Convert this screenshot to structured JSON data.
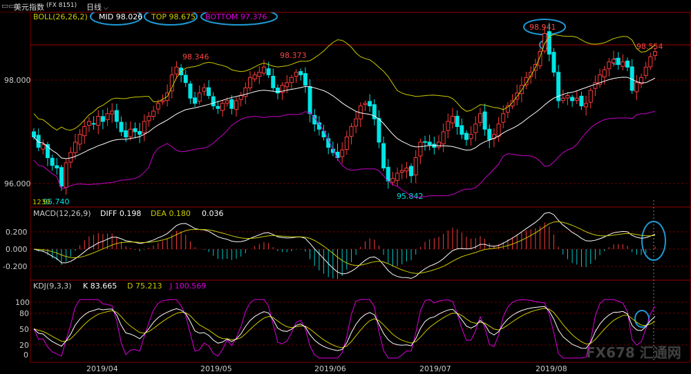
{
  "header": {
    "window_icon": "minimize-restore-icon",
    "title": "美元指数",
    "code": "(FX 8151)",
    "period": "日线",
    "period_icon": "chevron-down-icon"
  },
  "boll": {
    "label": "BOLL(26,26,2)",
    "mid_label": "MID 98.026",
    "top_label": "TOP 98.675",
    "bottom_label": "BOTTOM 97.376",
    "colors": {
      "mid": "#ffffff",
      "top": "#cccc00",
      "bottom": "#cc00cc"
    }
  },
  "macd": {
    "label": "MACD(12,26,9)",
    "diff_label": "DIFF 0.198",
    "dea_label": "DEA 0.180",
    "macd_value": "0.036",
    "axis_ticks": [
      "0.200",
      "0.000",
      "-0.200"
    ]
  },
  "kdj": {
    "label": "KDJ(9,3,3)",
    "k_label": "K 83.665",
    "d_label": "D 75.213",
    "j_label": "J 100.569",
    "axis_ticks": [
      "100",
      "80",
      "50",
      "20",
      "0"
    ]
  },
  "price_axis": {
    "ticks": [
      "98.000",
      "96.000"
    ]
  },
  "time_axis": {
    "labels": [
      "2019/04",
      "2019/05",
      "2019/06",
      "2019/07",
      "2019/08"
    ]
  },
  "annotations": {
    "high1": "98.346",
    "high2": "98.373",
    "high3": "98.941",
    "low1": "95.740",
    "low2": "95.842",
    "last": "98.554",
    "small_count": "1239"
  },
  "watermark": "FX678 汇通网",
  "chart_data": {
    "type": "candlestick",
    "title": "美元指数 (FX 8151) 日线",
    "price_range": [
      95.6,
      98.7
    ],
    "dates": [
      "2019/04",
      "2019/05",
      "2019/06",
      "2019/07",
      "2019/08"
    ],
    "note_values": {
      "boll_mid": 98.026,
      "boll_top": 98.675,
      "boll_bottom": 97.376,
      "macd_diff": 0.198,
      "macd_dea": 0.18,
      "macd": 0.036,
      "kdj_k": 83.665,
      "kdj_d": 75.213,
      "kdj_j": 100.569
    },
    "closes": [
      96.9,
      96.7,
      96.75,
      96.5,
      96.35,
      96.3,
      95.95,
      96.4,
      96.6,
      96.8,
      96.95,
      97.1,
      97.2,
      97.15,
      97.3,
      97.2,
      97.35,
      97.4,
      97.2,
      97.0,
      96.9,
      97.05,
      97.0,
      96.95,
      97.2,
      97.3,
      97.4,
      97.55,
      97.6,
      97.75,
      98.1,
      98.25,
      98.1,
      97.95,
      97.65,
      97.55,
      97.75,
      97.85,
      97.7,
      97.5,
      97.45,
      97.55,
      97.6,
      97.45,
      97.6,
      97.7,
      97.85,
      98.05,
      98.1,
      98.15,
      98.25,
      98.1,
      97.85,
      97.75,
      97.9,
      97.95,
      98.05,
      98.15,
      98.1,
      97.9,
      97.35,
      97.15,
      97.05,
      96.9,
      96.7,
      96.6,
      96.5,
      96.65,
      96.9,
      97.1,
      97.25,
      97.5,
      97.55,
      97.5,
      97.25,
      96.8,
      96.3,
      96.05,
      96.1,
      96.2,
      96.25,
      96.3,
      96.15,
      96.5,
      96.8,
      96.8,
      96.75,
      96.7,
      96.8,
      97.0,
      97.2,
      97.3,
      97.1,
      96.95,
      96.85,
      96.95,
      97.15,
      97.35,
      97.05,
      96.85,
      96.95,
      97.15,
      97.35,
      97.5,
      97.6,
      97.75,
      97.9,
      98.05,
      98.15,
      98.3,
      98.55,
      98.9,
      98.5,
      98.15,
      97.6,
      97.65,
      97.7,
      97.6,
      97.65,
      97.5,
      97.55,
      97.8,
      97.95,
      98.1,
      98.2,
      98.35,
      98.4,
      98.3,
      98.35,
      98.25,
      97.8,
      97.95,
      98.05,
      98.25,
      98.45,
      98.55
    ]
  }
}
